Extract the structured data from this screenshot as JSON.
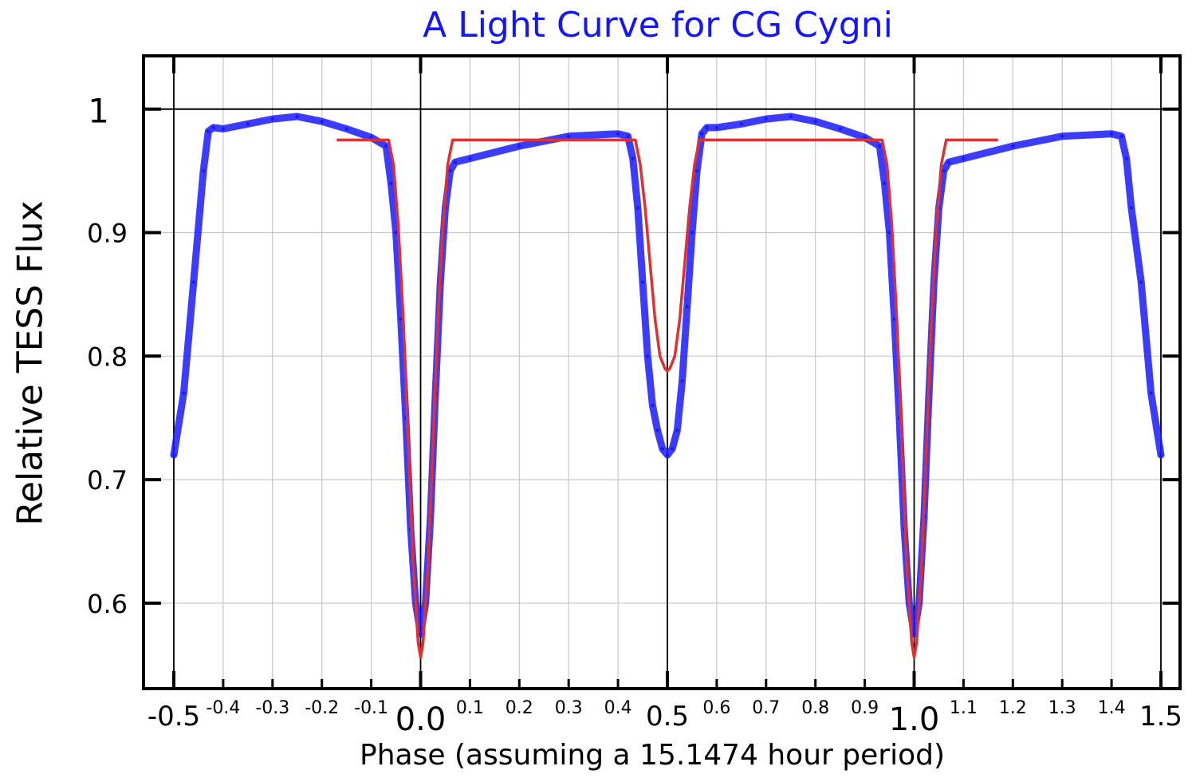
{
  "chart_data": {
    "type": "scatter",
    "title": "A Light Curve for CG Cygni",
    "xlabel": "Phase (assuming a 15.1474 hour period)",
    "ylabel": "Relative TESS Flux",
    "xlim": [
      -0.55,
      1.52
    ],
    "ylim": [
      0.53,
      1.045
    ],
    "grid": true,
    "x_major_ticks": [
      "-0.5",
      "0.0",
      "0.5",
      "1.0",
      "1.5"
    ],
    "x_minor_ticks": [
      "-0.4",
      "-0.3",
      "-0.2",
      "-0.1",
      "0.1",
      "0.2",
      "0.3",
      "0.4",
      "0.6",
      "0.7",
      "0.8",
      "0.9",
      "1.1",
      "1.2",
      "1.3",
      "1.4"
    ],
    "y_ticks": [
      "0.6",
      "0.7",
      "0.8",
      "0.9",
      "1"
    ],
    "reference_line_y": 1.0,
    "reference_lines_x": [
      -0.5,
      0.0,
      0.5,
      1.0,
      1.5
    ],
    "colors": {
      "data": "#1a1aff",
      "model": "#e03030",
      "title": "#1414ff"
    },
    "series": [
      {
        "style": "points",
        "x": [
          -0.5,
          -0.48,
          -0.46,
          -0.44,
          -0.43,
          -0.42,
          -0.4,
          -0.35,
          -0.3,
          -0.25,
          -0.2,
          -0.15,
          -0.1,
          -0.07,
          -0.06,
          -0.05,
          -0.04,
          -0.03,
          -0.02,
          -0.01,
          0.0,
          0.01,
          0.02,
          0.03,
          0.04,
          0.05,
          0.06,
          0.07,
          0.1,
          0.2,
          0.3,
          0.4,
          0.42,
          0.43,
          0.44,
          0.45,
          0.46,
          0.47,
          0.48,
          0.49,
          0.5,
          0.51,
          0.52,
          0.53,
          0.54,
          0.55,
          0.56,
          0.57,
          0.58,
          0.6,
          0.65,
          0.7,
          0.75,
          0.8,
          0.85,
          0.9,
          0.93,
          0.94,
          0.95,
          0.96,
          0.97,
          0.98,
          0.99,
          1.0,
          1.01,
          1.02,
          1.03,
          1.04,
          1.05,
          1.06,
          1.07,
          1.1,
          1.2,
          1.3,
          1.4,
          1.42,
          1.43,
          1.44,
          1.46,
          1.48,
          1.5
        ],
        "y": [
          0.72,
          0.77,
          0.86,
          0.95,
          0.982,
          0.985,
          0.984,
          0.988,
          0.992,
          0.994,
          0.99,
          0.984,
          0.977,
          0.97,
          0.94,
          0.9,
          0.83,
          0.75,
          0.66,
          0.6,
          0.575,
          0.6,
          0.67,
          0.77,
          0.86,
          0.92,
          0.95,
          0.957,
          0.96,
          0.97,
          0.978,
          0.98,
          0.978,
          0.96,
          0.92,
          0.86,
          0.8,
          0.76,
          0.74,
          0.725,
          0.72,
          0.725,
          0.74,
          0.78,
          0.84,
          0.9,
          0.95,
          0.98,
          0.985,
          0.985,
          0.988,
          0.992,
          0.994,
          0.99,
          0.984,
          0.977,
          0.97,
          0.94,
          0.9,
          0.83,
          0.75,
          0.66,
          0.6,
          0.575,
          0.6,
          0.67,
          0.77,
          0.86,
          0.92,
          0.95,
          0.957,
          0.96,
          0.97,
          0.978,
          0.98,
          0.978,
          0.96,
          0.92,
          0.86,
          0.77,
          0.72
        ]
      },
      {
        "style": "line",
        "x": [
          -0.17,
          -0.065,
          -0.055,
          -0.045,
          -0.035,
          -0.025,
          -0.015,
          -0.005,
          0.0,
          0.005,
          0.015,
          0.025,
          0.035,
          0.045,
          0.055,
          0.065,
          0.435,
          0.445,
          0.455,
          0.465,
          0.475,
          0.485,
          0.495,
          0.5,
          0.505,
          0.515,
          0.525,
          0.535,
          0.545,
          0.555,
          0.565,
          0.935,
          0.945,
          0.955,
          0.965,
          0.975,
          0.985,
          0.995,
          1.0,
          1.005,
          1.015,
          1.025,
          1.035,
          1.045,
          1.055,
          1.065,
          1.17
        ],
        "y": [
          0.975,
          0.975,
          0.955,
          0.905,
          0.83,
          0.73,
          0.63,
          0.568,
          0.556,
          0.568,
          0.63,
          0.73,
          0.83,
          0.905,
          0.955,
          0.975,
          0.975,
          0.955,
          0.92,
          0.875,
          0.83,
          0.8,
          0.79,
          0.788,
          0.79,
          0.8,
          0.83,
          0.875,
          0.92,
          0.955,
          0.975,
          0.975,
          0.955,
          0.905,
          0.83,
          0.73,
          0.63,
          0.568,
          0.556,
          0.568,
          0.63,
          0.73,
          0.83,
          0.905,
          0.955,
          0.975,
          0.975
        ]
      }
    ]
  }
}
